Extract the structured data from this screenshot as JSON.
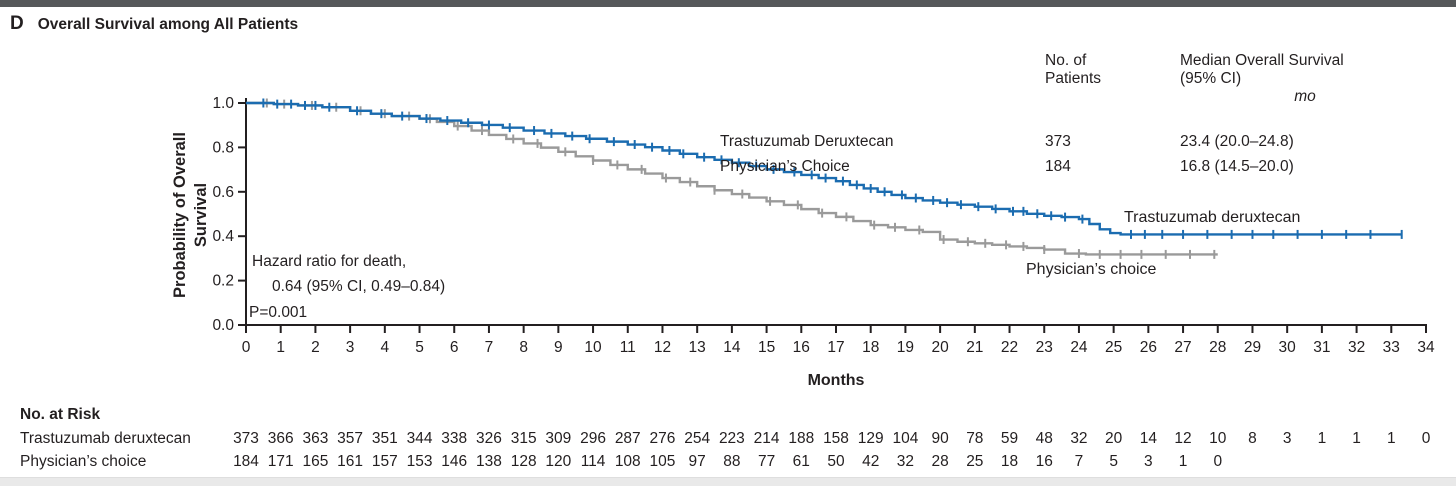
{
  "page": {
    "panel_letter": "D",
    "panel_title": "Overall Survival among All Patients"
  },
  "colors": {
    "tdxd_blue": "#1b6cb0",
    "pc_gray": "#9a9a9a",
    "text": "#231f20",
    "topbar": "#56585a",
    "bottom_strip": "#e9e9e9"
  },
  "stats_table": {
    "header_col1": [
      "No. of",
      "Patients"
    ],
    "header_col2": [
      "Median Overall Survival",
      "(95% CI)"
    ],
    "unit": "mo",
    "rows": [
      {
        "label": "Trastuzumab Deruxtecan",
        "n": "373",
        "median": "23.4 (20.0–24.8)"
      },
      {
        "label": "Physician’s Choice",
        "n": "184",
        "median": "16.8 (14.5–20.0)"
      }
    ]
  },
  "annotation": {
    "line1": "Hazard ratio for death,",
    "line2": "0.64 (95% CI, 0.49–0.84)",
    "line3": "P=0.001"
  },
  "chart_data": {
    "type": "line",
    "subtype": "kaplan-meier-step",
    "title": "Overall Survival among All Patients",
    "xlabel": "Months",
    "ylabel": "Probability of Overall Survival",
    "xlim": [
      0,
      34
    ],
    "ylim": [
      0.0,
      1.0
    ],
    "x_ticks": [
      0,
      1,
      2,
      3,
      4,
      5,
      6,
      7,
      8,
      9,
      10,
      11,
      12,
      13,
      14,
      15,
      16,
      17,
      18,
      19,
      20,
      21,
      22,
      23,
      24,
      25,
      26,
      27,
      28,
      29,
      30,
      31,
      32,
      33,
      34
    ],
    "y_ticks": [
      "0.0",
      "0.2",
      "0.4",
      "0.6",
      "0.8",
      "1.0"
    ],
    "grid": false,
    "series": [
      {
        "name": "Physician’s choice",
        "curve_label": "Physician’s choice",
        "color": "#9a9a9a",
        "points": [
          [
            0,
            1.0
          ],
          [
            0.8,
            0.995
          ],
          [
            1.5,
            0.989
          ],
          [
            2.2,
            0.981
          ],
          [
            3.0,
            0.965
          ],
          [
            3.6,
            0.952
          ],
          [
            4.2,
            0.941
          ],
          [
            5.0,
            0.929
          ],
          [
            5.5,
            0.915
          ],
          [
            6.0,
            0.896
          ],
          [
            6.5,
            0.876
          ],
          [
            7.0,
            0.856
          ],
          [
            7.5,
            0.838
          ],
          [
            8.0,
            0.818
          ],
          [
            8.5,
            0.799
          ],
          [
            9.0,
            0.78
          ],
          [
            9.5,
            0.76
          ],
          [
            10.0,
            0.741
          ],
          [
            10.5,
            0.721
          ],
          [
            11.0,
            0.701
          ],
          [
            11.5,
            0.682
          ],
          [
            12.0,
            0.662
          ],
          [
            12.5,
            0.644
          ],
          [
            13.0,
            0.625
          ],
          [
            13.5,
            0.607
          ],
          [
            14.0,
            0.59
          ],
          [
            14.5,
            0.574
          ],
          [
            15.0,
            0.557
          ],
          [
            15.5,
            0.541
          ],
          [
            16.0,
            0.522
          ],
          [
            16.5,
            0.504
          ],
          [
            17.0,
            0.487
          ],
          [
            17.5,
            0.468
          ],
          [
            18.0,
            0.45
          ],
          [
            18.5,
            0.44
          ],
          [
            19.0,
            0.428
          ],
          [
            19.5,
            0.419
          ],
          [
            20.0,
            0.385
          ],
          [
            20.5,
            0.375
          ],
          [
            21.0,
            0.368
          ],
          [
            21.5,
            0.361
          ],
          [
            22.0,
            0.354
          ],
          [
            22.5,
            0.347
          ],
          [
            23.0,
            0.34
          ],
          [
            23.6,
            0.322
          ],
          [
            24.2,
            0.318
          ],
          [
            28.0,
            0.318
          ]
        ],
        "censor_marks": [
          0.6,
          1.1,
          1.9,
          2.6,
          3.3,
          4.0,
          4.7,
          5.3,
          6.1,
          6.8,
          7.7,
          8.4,
          9.2,
          10.0,
          10.7,
          11.4,
          12.1,
          12.8,
          13.5,
          14.3,
          15.1,
          15.9,
          16.6,
          17.3,
          18.1,
          18.7,
          19.4,
          20.1,
          20.8,
          21.3,
          21.9,
          22.4,
          23.0,
          24.0,
          24.6,
          25.2,
          25.8,
          26.5,
          27.2,
          27.9
        ]
      },
      {
        "name": "Trastuzumab deruxtecan",
        "curve_label": "Trastuzumab deruxtecan",
        "color": "#1b6cb0",
        "points": [
          [
            0,
            1.0
          ],
          [
            0.8,
            0.995
          ],
          [
            1.5,
            0.989
          ],
          [
            2.2,
            0.981
          ],
          [
            3.0,
            0.965
          ],
          [
            3.6,
            0.952
          ],
          [
            4.2,
            0.941
          ],
          [
            5.0,
            0.93
          ],
          [
            5.6,
            0.921
          ],
          [
            6.2,
            0.911
          ],
          [
            6.8,
            0.901
          ],
          [
            7.4,
            0.889
          ],
          [
            8.0,
            0.876
          ],
          [
            8.6,
            0.863
          ],
          [
            9.2,
            0.851
          ],
          [
            9.8,
            0.839
          ],
          [
            10.4,
            0.826
          ],
          [
            11.0,
            0.813
          ],
          [
            11.5,
            0.801
          ],
          [
            12.0,
            0.786
          ],
          [
            12.5,
            0.771
          ],
          [
            13.0,
            0.756
          ],
          [
            13.5,
            0.744
          ],
          [
            14.0,
            0.731
          ],
          [
            14.5,
            0.716
          ],
          [
            15.0,
            0.701
          ],
          [
            15.5,
            0.689
          ],
          [
            16.0,
            0.676
          ],
          [
            16.5,
            0.662
          ],
          [
            17.0,
            0.648
          ],
          [
            17.4,
            0.631
          ],
          [
            17.8,
            0.615
          ],
          [
            18.2,
            0.6
          ],
          [
            18.6,
            0.586
          ],
          [
            19.0,
            0.572
          ],
          [
            19.5,
            0.561
          ],
          [
            20.0,
            0.551
          ],
          [
            20.5,
            0.542
          ],
          [
            21.0,
            0.533
          ],
          [
            21.5,
            0.523
          ],
          [
            22.0,
            0.512
          ],
          [
            22.5,
            0.501
          ],
          [
            23.0,
            0.492
          ],
          [
            23.5,
            0.486
          ],
          [
            24.0,
            0.477
          ],
          [
            24.3,
            0.455
          ],
          [
            24.6,
            0.431
          ],
          [
            24.9,
            0.414
          ],
          [
            25.2,
            0.408
          ],
          [
            33.3,
            0.408
          ]
        ],
        "censor_marks": [
          0.5,
          0.9,
          1.3,
          1.7,
          2.0,
          2.4,
          3.2,
          3.9,
          4.5,
          5.2,
          5.8,
          6.4,
          7.0,
          7.6,
          8.3,
          8.8,
          9.4,
          9.9,
          10.6,
          11.2,
          11.7,
          12.2,
          12.6,
          13.2,
          13.7,
          14.2,
          14.7,
          15.2,
          15.8,
          16.3,
          16.7,
          17.2,
          17.6,
          18.0,
          18.4,
          18.9,
          19.3,
          19.8,
          20.2,
          20.6,
          21.1,
          21.6,
          22.1,
          22.4,
          22.8,
          23.2,
          23.6,
          24.1,
          25.5,
          25.9,
          26.4,
          27.0,
          27.7,
          28.4,
          29.0,
          29.6,
          30.3,
          31.0,
          31.7,
          32.4,
          33.3
        ]
      }
    ],
    "curve_end_labels": [
      {
        "text": "Trastuzumab deruxtecan",
        "series": "Trastuzumab deruxtecan"
      },
      {
        "text": "Physician’s choice",
        "series": "Physician’s choice"
      }
    ]
  },
  "risk_table": {
    "title": "No. at Risk",
    "rows": [
      {
        "label": "Trastuzumab deruxtecan",
        "values": [
          373,
          366,
          363,
          357,
          351,
          344,
          338,
          326,
          315,
          309,
          296,
          287,
          276,
          254,
          223,
          214,
          188,
          158,
          129,
          104,
          90,
          78,
          59,
          48,
          32,
          20,
          14,
          12,
          10,
          8,
          3,
          1,
          1,
          1,
          0
        ]
      },
      {
        "label": "Physician’s choice",
        "values": [
          184,
          171,
          165,
          161,
          157,
          153,
          146,
          138,
          128,
          120,
          114,
          108,
          105,
          97,
          88,
          77,
          61,
          50,
          42,
          32,
          28,
          25,
          18,
          16,
          7,
          5,
          3,
          1,
          0
        ]
      }
    ]
  }
}
